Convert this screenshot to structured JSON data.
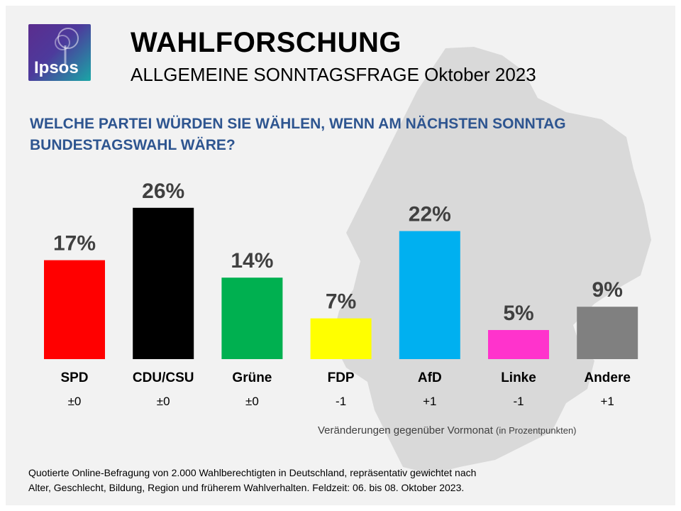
{
  "title": "WAHLFORSCHUNG",
  "subtitle": "ALLGEMEINE SONNTAGSFRAGE Oktober 2023",
  "logo_text": "Ipsos",
  "question": "WELCHE PARTEI WÜRDEN SIE WÄHLEN, WENN AM NÄCHSTEN SONNTAG BUNDESTAGSWAHL WÄRE?",
  "change_note": "Veränderungen gegenüber Vormonat",
  "change_note_unit": "(in Prozentpunkten)",
  "footer_line1": "Quotierte Online-Befragung  von 2.000 Wahlberechtigten  in Deutschland, repräsentativ gewichtet nach",
  "footer_line2": "Alter, Geschlecht, Bildung, Region und früherem Wahlverhalten.  Feldzeit: 06. bis 08. Oktober 2023.",
  "colors": {
    "title_blue": "#2e5590",
    "map_gray": "#d9d9d9",
    "background": "#f2f2f2"
  },
  "chart_data": {
    "type": "bar",
    "title": "WELCHE PARTEI WÜRDEN SIE WÄHLEN, WENN AM NÄCHSTEN SONNTAG BUNDESTAGSWAHL WÄRE?",
    "xlabel": "",
    "ylabel": "",
    "ylim": [
      0,
      30
    ],
    "unit": "%",
    "categories": [
      "SPD",
      "CDU/CSU",
      "Grüne",
      "FDP",
      "AfD",
      "Linke",
      "Andere"
    ],
    "values": [
      17,
      26,
      14,
      7,
      22,
      5,
      9
    ],
    "value_labels": [
      "17%",
      "26%",
      "14%",
      "7%",
      "22%",
      "5%",
      "9%"
    ],
    "changes": [
      "±0",
      "±0",
      "±0",
      "-1",
      "+1",
      "-1",
      "+1"
    ],
    "colors": [
      "#ff0000",
      "#000000",
      "#00b050",
      "#ffff00",
      "#00b0f0",
      "#ff33cc",
      "#808080"
    ],
    "grid": false,
    "legend": "none"
  }
}
